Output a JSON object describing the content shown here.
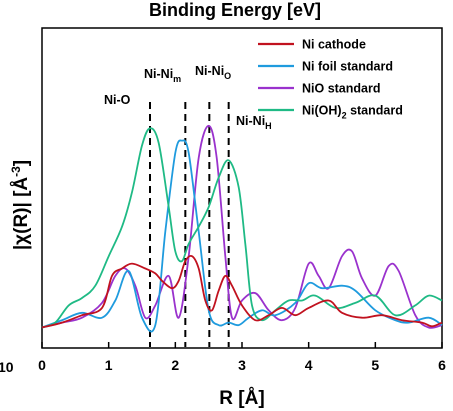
{
  "chart_data": {
    "type": "line",
    "top_title": "Binding Energy [eV]",
    "xlabel": "R [Å]",
    "ylabel_main": "|χ(R)| [Å",
    "ylabel_sup": "-3",
    "ylabel_end": "]",
    "xlim": [
      0,
      6
    ],
    "ylim": [
      0,
      1.0
    ],
    "x_ticks": [
      "0",
      "1",
      "2",
      "3",
      "4",
      "5",
      "6"
    ],
    "left_edge_label": "10",
    "legend_position": "top-right",
    "series": [
      {
        "name": "Ni cathode",
        "color": "#c1121f",
        "points": [
          [
            0,
            0.01
          ],
          [
            0.3,
            0.03
          ],
          [
            0.6,
            0.06
          ],
          [
            0.9,
            0.09
          ],
          [
            1.05,
            0.22
          ],
          [
            1.2,
            0.25
          ],
          [
            1.35,
            0.27
          ],
          [
            1.55,
            0.25
          ],
          [
            1.7,
            0.23
          ],
          [
            1.8,
            0.2
          ],
          [
            1.95,
            0.17
          ],
          [
            2.05,
            0.2
          ],
          [
            2.15,
            0.28
          ],
          [
            2.25,
            0.3
          ],
          [
            2.35,
            0.25
          ],
          [
            2.45,
            0.12
          ],
          [
            2.55,
            0.08
          ],
          [
            2.65,
            0.16
          ],
          [
            2.75,
            0.22
          ],
          [
            2.85,
            0.18
          ],
          [
            3.0,
            0.1
          ],
          [
            3.2,
            0.04
          ],
          [
            3.4,
            0.06
          ],
          [
            3.6,
            0.09
          ],
          [
            3.8,
            0.06
          ],
          [
            4.0,
            0.09
          ],
          [
            4.3,
            0.12
          ],
          [
            4.5,
            0.07
          ],
          [
            4.8,
            0.05
          ],
          [
            5.1,
            0.06
          ],
          [
            5.4,
            0.04
          ],
          [
            5.7,
            0.03
          ],
          [
            5.85,
            0.015
          ],
          [
            6.0,
            0.03
          ]
        ]
      },
      {
        "name": "Ni foil standard",
        "color": "#1f9bde",
        "points": [
          [
            0,
            0.01
          ],
          [
            0.3,
            0.04
          ],
          [
            0.6,
            0.07
          ],
          [
            0.9,
            0.05
          ],
          [
            1.1,
            0.12
          ],
          [
            1.3,
            0.24
          ],
          [
            1.5,
            0.05
          ],
          [
            1.7,
            0.02
          ],
          [
            1.85,
            0.4
          ],
          [
            2.0,
            0.72
          ],
          [
            2.1,
            0.77
          ],
          [
            2.2,
            0.72
          ],
          [
            2.35,
            0.4
          ],
          [
            2.5,
            0.08
          ],
          [
            2.65,
            0.02
          ],
          [
            2.8,
            0.03
          ],
          [
            2.95,
            0.02
          ],
          [
            3.1,
            0.05
          ],
          [
            3.3,
            0.08
          ],
          [
            3.5,
            0.06
          ],
          [
            3.8,
            0.11
          ],
          [
            4.0,
            0.19
          ],
          [
            4.2,
            0.17
          ],
          [
            4.5,
            0.18
          ],
          [
            4.7,
            0.16
          ],
          [
            5.0,
            0.08
          ],
          [
            5.3,
            0.04
          ],
          [
            5.5,
            0.03
          ],
          [
            5.8,
            0.05
          ],
          [
            6.0,
            0.02
          ]
        ]
      },
      {
        "name": "NiO standard",
        "color": "#9a32cd",
        "points": [
          [
            0,
            0.01
          ],
          [
            0.3,
            0.03
          ],
          [
            0.6,
            0.05
          ],
          [
            0.9,
            0.11
          ],
          [
            1.1,
            0.22
          ],
          [
            1.25,
            0.25
          ],
          [
            1.4,
            0.18
          ],
          [
            1.55,
            0.05
          ],
          [
            1.7,
            0.1
          ],
          [
            1.9,
            0.22
          ],
          [
            2.05,
            0.05
          ],
          [
            2.2,
            0.3
          ],
          [
            2.35,
            0.7
          ],
          [
            2.5,
            0.83
          ],
          [
            2.62,
            0.7
          ],
          [
            2.75,
            0.3
          ],
          [
            2.85,
            0.05
          ],
          [
            3.0,
            0.12
          ],
          [
            3.2,
            0.15
          ],
          [
            3.4,
            0.08
          ],
          [
            3.6,
            0.04
          ],
          [
            3.8,
            0.09
          ],
          [
            4.0,
            0.27
          ],
          [
            4.15,
            0.22
          ],
          [
            4.3,
            0.17
          ],
          [
            4.5,
            0.3
          ],
          [
            4.65,
            0.32
          ],
          [
            4.8,
            0.21
          ],
          [
            5.0,
            0.14
          ],
          [
            5.2,
            0.26
          ],
          [
            5.35,
            0.24
          ],
          [
            5.6,
            0.06
          ],
          [
            5.8,
            0.01
          ],
          [
            6.0,
            0.02
          ]
        ]
      },
      {
        "name": "Ni(OH)2 standard",
        "color": "#1fba85",
        "points": [
          [
            0,
            0.01
          ],
          [
            0.2,
            0.03
          ],
          [
            0.4,
            0.1
          ],
          [
            0.6,
            0.13
          ],
          [
            0.8,
            0.18
          ],
          [
            1.0,
            0.3
          ],
          [
            1.2,
            0.42
          ],
          [
            1.35,
            0.56
          ],
          [
            1.5,
            0.75
          ],
          [
            1.62,
            0.82
          ],
          [
            1.75,
            0.76
          ],
          [
            1.9,
            0.5
          ],
          [
            2.0,
            0.32
          ],
          [
            2.1,
            0.28
          ],
          [
            2.2,
            0.35
          ],
          [
            2.35,
            0.42
          ],
          [
            2.5,
            0.5
          ],
          [
            2.65,
            0.62
          ],
          [
            2.8,
            0.69
          ],
          [
            2.95,
            0.58
          ],
          [
            3.05,
            0.35
          ],
          [
            3.15,
            0.1
          ],
          [
            3.3,
            0.04
          ],
          [
            3.5,
            0.08
          ],
          [
            3.7,
            0.12
          ],
          [
            3.9,
            0.12
          ],
          [
            4.1,
            0.14
          ],
          [
            4.4,
            0.09
          ],
          [
            4.7,
            0.11
          ],
          [
            5.0,
            0.14
          ],
          [
            5.3,
            0.06
          ],
          [
            5.6,
            0.1
          ],
          [
            5.8,
            0.14
          ],
          [
            6.0,
            0.12
          ]
        ]
      }
    ],
    "annotations": [
      {
        "label": "Ni-O",
        "sub": "",
        "x": 1.62
      },
      {
        "label": "Ni-Ni",
        "sub": "m",
        "x": 2.15
      },
      {
        "label": "Ni-Ni",
        "sub": "O",
        "x": 2.51
      },
      {
        "label": "Ni-Ni",
        "sub": "H",
        "x": 2.8
      }
    ],
    "legend": [
      {
        "label": "Ni cathode",
        "sub": "",
        "suffix": ""
      },
      {
        "label": "Ni foil standard",
        "sub": "",
        "suffix": ""
      },
      {
        "label": "NiO standard",
        "sub": "",
        "suffix": ""
      },
      {
        "label": "Ni(OH)",
        "sub": "2",
        "suffix": " standard"
      }
    ]
  }
}
